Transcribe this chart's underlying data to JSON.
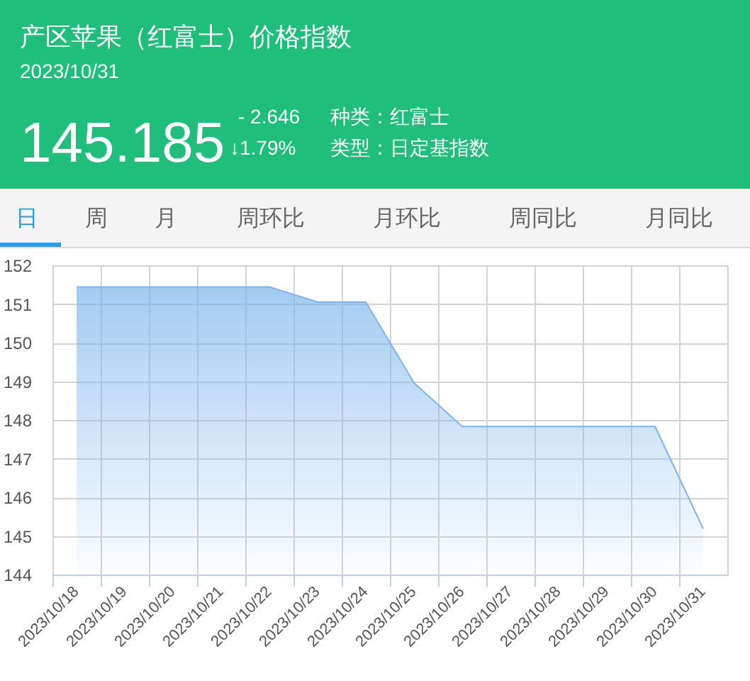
{
  "chart_data": {
    "type": "area",
    "title": "产区苹果（红富士）价格指数",
    "subtitle": "2023/10/31",
    "annotations": [
      "145.185",
      "- 2.646",
      "↓1.79%",
      "种类：红富士",
      "类型：日定基指数",
      "日",
      "周",
      "月",
      "周环比",
      "月环比",
      "周同比",
      "月同比"
    ],
    "categories": [
      "2023/10/18",
      "2023/10/19",
      "2023/10/20",
      "2023/10/21",
      "2023/10/22",
      "2023/10/23",
      "2023/10/24",
      "2023/10/25",
      "2023/10/26",
      "2023/10/27",
      "2023/10/28",
      "2023/10/29",
      "2023/10/30",
      "2023/10/31"
    ],
    "values": [
      151.44,
      151.44,
      151.44,
      151.44,
      151.44,
      151.05,
      151.05,
      148.96,
      147.83,
      147.83,
      147.83,
      147.83,
      147.83,
      145.185
    ],
    "color": "#7cb5ec",
    "ylim": [
      144,
      152
    ],
    "yticks": [
      144,
      145,
      146,
      147,
      148,
      149,
      150,
      151,
      152
    ],
    "grid": true
  }
}
